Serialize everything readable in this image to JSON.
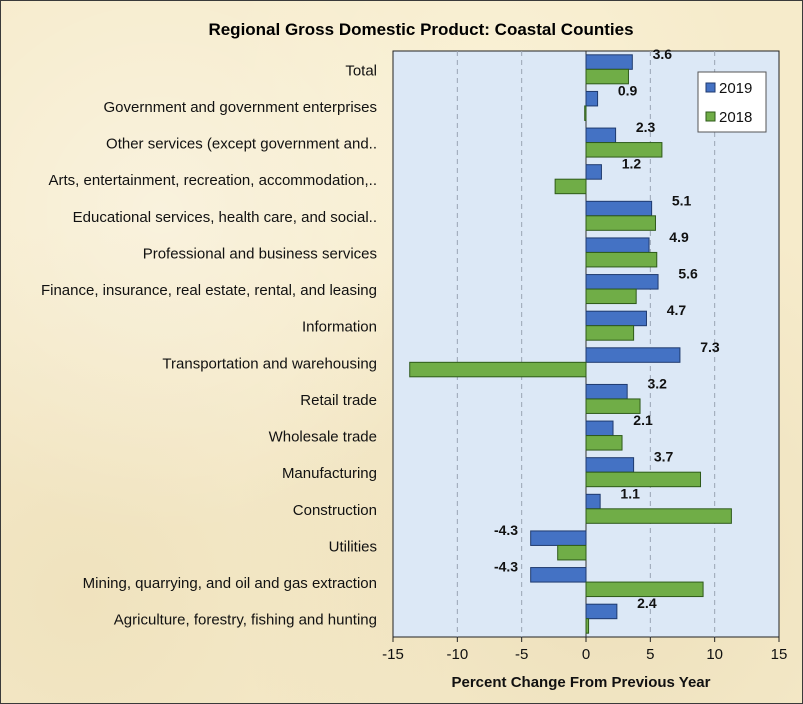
{
  "chart_data": {
    "type": "bar",
    "orientation": "horizontal",
    "title": "Regional Gross Domestic Product: Coastal Counties",
    "xlabel": "Percent Change From Previous Year",
    "ylabel": "",
    "xlim": [
      -15,
      15
    ],
    "xticks": [
      -15,
      -10,
      -5,
      0,
      5,
      10,
      15
    ],
    "grid": "vertical dashed",
    "legend_position": "top-right",
    "categories": [
      "Total",
      "Government and government enterprises",
      "Other services (except government and..",
      "Arts, entertainment, recreation, accommodation,..",
      "Educational services, health care, and social..",
      "Professional and business services",
      "Finance, insurance, real estate, rental, and leasing",
      "Information",
      "Transportation and warehousing",
      "Retail trade",
      "Wholesale trade",
      "Manufacturing",
      "Construction",
      "Utilities",
      "Mining, quarrying, and oil and gas extraction",
      "Agriculture, forestry, fishing and hunting"
    ],
    "series": [
      {
        "name": "2019",
        "color": "#4472c4",
        "values": [
          3.6,
          0.9,
          2.3,
          1.2,
          5.1,
          4.9,
          5.6,
          4.7,
          7.3,
          3.2,
          2.1,
          3.7,
          1.1,
          -4.3,
          -4.3,
          2.4
        ],
        "data_labels": [
          "3.6",
          "0.9",
          "2.3",
          "1.2",
          "5.1",
          "4.9",
          "5.6",
          "4.7",
          "7.3",
          "3.2",
          "2.1",
          "3.7",
          "1.1",
          "-4.3",
          "-4.3",
          "2.4"
        ]
      },
      {
        "name": "2018",
        "color": "#70ad47",
        "values": [
          3.3,
          -0.1,
          5.9,
          -2.4,
          5.4,
          5.5,
          3.9,
          3.7,
          -13.7,
          4.2,
          2.8,
          8.9,
          11.3,
          -2.2,
          9.1,
          0.2
        ]
      }
    ],
    "plot_background": "#dce8f6"
  }
}
